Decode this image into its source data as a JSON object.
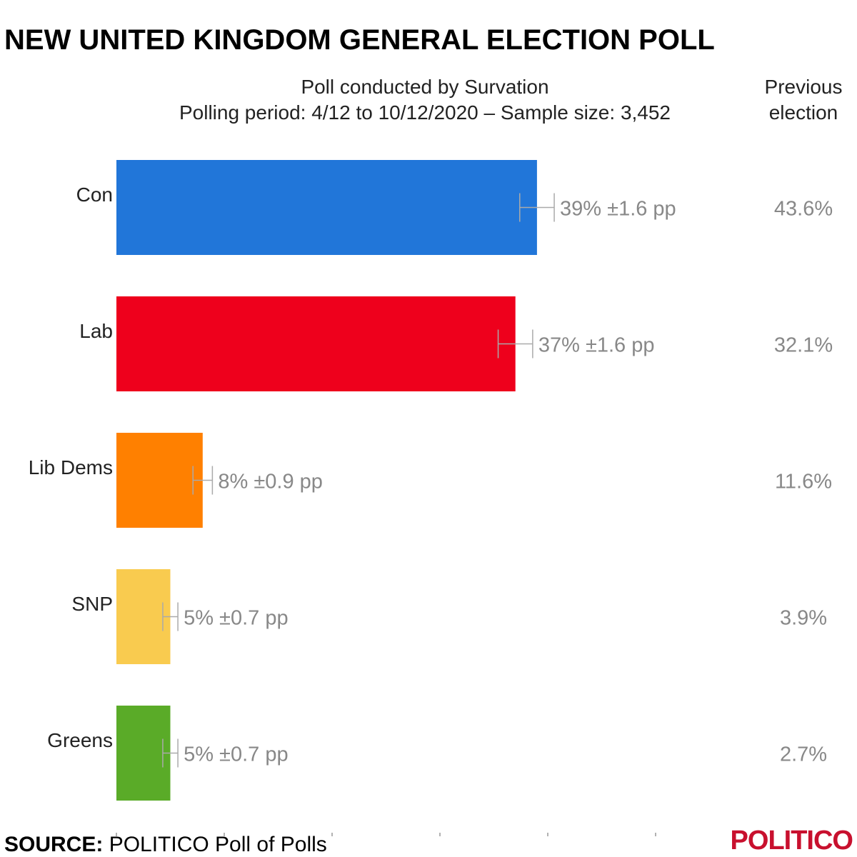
{
  "title": "NEW UNITED KINGDOM GENERAL ELECTION POLL",
  "subtitle_line1": "Poll conducted by Survation",
  "subtitle_line2": "Polling period: 4/12 to 10/12/2020 – Sample size: 3,452",
  "previous_header_line1": "Previous",
  "previous_header_line2": "election",
  "source_label": "SOURCE:",
  "source_text": "POLITICO Poll of Polls",
  "logo_text": "POLITICO",
  "colors": {
    "logo": "#c8102e",
    "label_text": "#222222",
    "value_text": "#888888",
    "error_bar": "#aaaaaa",
    "axis_tick": "#999999"
  },
  "chart_data": {
    "type": "bar",
    "orientation": "horizontal",
    "title": "NEW UNITED KINGDOM GENERAL ELECTION POLL",
    "categories": [
      "Con",
      "Lab",
      "Lib Dems",
      "SNP",
      "Greens"
    ],
    "values": [
      39,
      37,
      8,
      5,
      5
    ],
    "margins_of_error": [
      1.6,
      1.6,
      0.9,
      0.7,
      0.7
    ],
    "value_labels": [
      "39% ±1.6 pp",
      "37% ±1.6 pp",
      "8% ±0.9 pp",
      "5% ±0.7 pp",
      "5% ±0.7 pp"
    ],
    "previous_election": [
      "43.6%",
      "32.1%",
      "11.6%",
      "3.9%",
      "2.7%"
    ],
    "bar_colors": [
      "#2176d9",
      "#ee001c",
      "#ff8000",
      "#f9cb4f",
      "#5aab28"
    ],
    "xlim": [
      0,
      50
    ],
    "x_ticks": [
      0,
      10,
      20,
      30,
      40,
      50
    ],
    "xlabel": "",
    "ylabel": ""
  }
}
